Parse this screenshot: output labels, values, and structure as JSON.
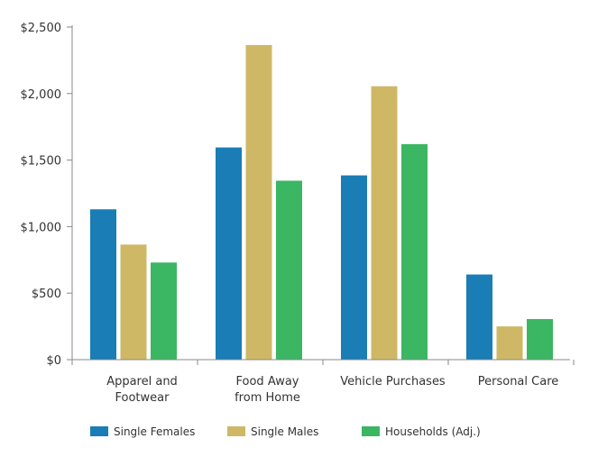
{
  "chart_data": {
    "type": "bar",
    "title": "",
    "xlabel": "",
    "ylabel": "",
    "categories": [
      [
        "Apparel and",
        "Footwear"
      ],
      [
        "Food Away",
        "from Home"
      ],
      [
        "Vehicle Purchases"
      ],
      [
        "Personal Care"
      ]
    ],
    "series": [
      {
        "name": "Single Females",
        "color": "#1a7db5",
        "values": [
          1130,
          1595,
          1385,
          640
        ]
      },
      {
        "name": "Single Males",
        "color": "#ceb866",
        "values": [
          865,
          2365,
          2055,
          250
        ]
      },
      {
        "name": "Households (Adj.)",
        "color": "#3bb662",
        "values": [
          730,
          1345,
          1620,
          305
        ]
      }
    ],
    "ylim": [
      0,
      2500
    ],
    "yticks": [
      {
        "value": 0,
        "label": "$0"
      },
      {
        "value": 500,
        "label": "$500"
      },
      {
        "value": 1000,
        "label": "$1,000"
      },
      {
        "value": 1500,
        "label": "$1,500"
      },
      {
        "value": 2000,
        "label": "$2,000"
      },
      {
        "value": 2500,
        "label": "$2,500"
      }
    ],
    "grid": false,
    "legend_position": "bottom"
  }
}
